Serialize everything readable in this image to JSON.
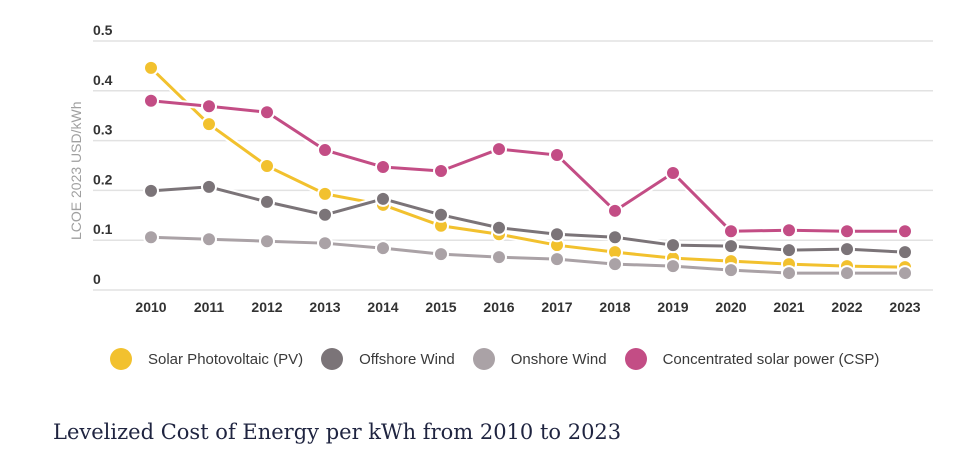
{
  "chart_data": {
    "type": "line",
    "title": "",
    "xlabel": "",
    "ylabel": "LCOE 2023 USD/kWh",
    "ylim": [
      0,
      0.5
    ],
    "yticks": [
      "0",
      "0.1",
      "0.2",
      "0.3",
      "0.4",
      "0.5"
    ],
    "ytick_values": [
      0,
      0.1,
      0.2,
      0.3,
      0.4,
      0.5
    ],
    "grid": true,
    "legend_position": "bottom",
    "categories": [
      "2010",
      "2011",
      "2012",
      "2013",
      "2014",
      "2015",
      "2016",
      "2017",
      "2018",
      "2019",
      "2020",
      "2021",
      "2022",
      "2023"
    ],
    "series": [
      {
        "name": "Solar Photovoltaic (PV)",
        "color": "#f2c12e",
        "values": [
          0.446,
          0.333,
          0.249,
          0.193,
          0.171,
          0.129,
          0.112,
          0.09,
          0.076,
          0.064,
          0.058,
          0.052,
          0.048,
          0.046
        ]
      },
      {
        "name": "Offshore Wind",
        "color": "#7b7478",
        "values": [
          0.199,
          0.207,
          0.177,
          0.151,
          0.183,
          0.151,
          0.125,
          0.112,
          0.106,
          0.09,
          0.088,
          0.08,
          0.082,
          0.076
        ]
      },
      {
        "name": "Onshore Wind",
        "color": "#aaa2a6",
        "values": [
          0.106,
          0.102,
          0.098,
          0.094,
          0.084,
          0.072,
          0.066,
          0.062,
          0.052,
          0.048,
          0.04,
          0.034,
          0.034,
          0.034
        ]
      },
      {
        "name": "Concentrated solar power (CSP)",
        "color": "#c34d85",
        "values": [
          0.38,
          0.369,
          0.357,
          0.281,
          0.247,
          0.239,
          0.283,
          0.271,
          0.159,
          0.235,
          0.118,
          0.12,
          0.118,
          0.118
        ]
      }
    ]
  },
  "caption": "Levelized Cost of Energy per kWh from 2010 to 2023"
}
